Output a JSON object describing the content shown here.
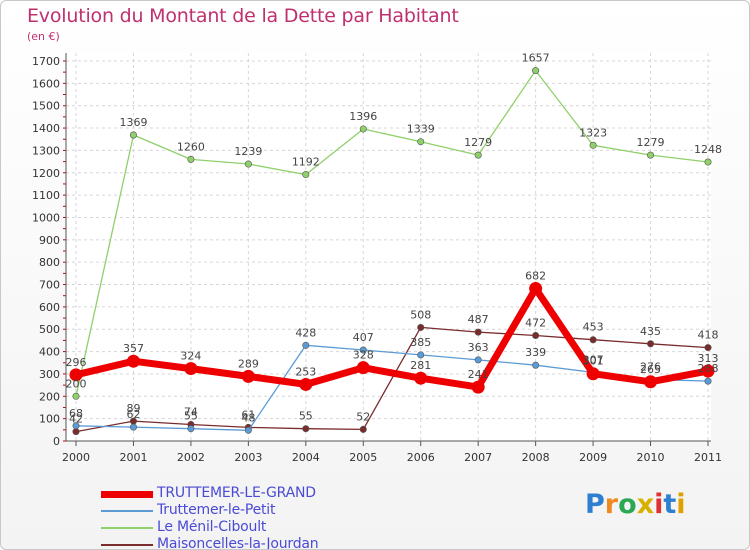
{
  "title": "Evolution du Montant de la Dette par Habitant",
  "unit_label": "(en €)",
  "brand": {
    "text": "Proxiti",
    "letter_colors": [
      "#2f7fd0",
      "#f08a1e",
      "#2aa852",
      "#d8b000",
      "#e03030",
      "#2f7fd0",
      "#e0a000"
    ]
  },
  "chart_data": {
    "type": "line",
    "title": "Evolution du Montant de la Dette par Habitant",
    "xlabel": "",
    "ylabel": "(en €)",
    "ylim": [
      0,
      1700
    ],
    "y_ticks": [
      0,
      100,
      200,
      300,
      400,
      500,
      600,
      700,
      800,
      900,
      1000,
      1100,
      1200,
      1300,
      1400,
      1500,
      1600,
      1700
    ],
    "categories": [
      "2000",
      "2001",
      "2002",
      "2003",
      "2004",
      "2005",
      "2006",
      "2007",
      "2008",
      "2009",
      "2010",
      "2011"
    ],
    "grid": true,
    "legend_position": "bottom-left",
    "series": [
      {
        "name": "TRUTTEMER-LE-GRAND",
        "color": "#ee0000",
        "values": [
          296,
          357,
          324,
          289,
          253,
          328,
          281,
          241,
          682,
          301,
          265,
          313
        ],
        "labels": [
          "296",
          "357",
          "324",
          "289",
          "253",
          "328",
          "281",
          "241",
          "682",
          "301",
          "265",
          "313"
        ]
      },
      {
        "name": "Truttemer-le-Petit",
        "color": "#5b9bd5",
        "values": [
          68,
          62,
          55,
          48,
          428,
          407,
          385,
          363,
          339,
          307,
          276,
          268
        ],
        "labels": [
          "68",
          "62",
          "55",
          "48",
          "428",
          "407",
          "385",
          "363",
          "339",
          "307",
          "276",
          "268"
        ]
      },
      {
        "name": "Le Ménil-Ciboult",
        "color": "#8fd06a",
        "values": [
          200,
          1369,
          1260,
          1239,
          1192,
          1396,
          1339,
          1279,
          1657,
          1323,
          1279,
          1248
        ],
        "labels": [
          "200",
          "1369",
          "1260",
          "1239",
          "1192",
          "1396",
          "1339",
          "1279",
          "1657",
          "1323",
          "1279",
          "1248"
        ]
      },
      {
        "name": "Maisoncelles-la-Jourdan",
        "color": "#7a2b2b",
        "values": [
          42,
          89,
          74,
          61,
          55,
          52,
          508,
          487,
          472,
          453,
          435,
          418
        ],
        "labels": [
          "42",
          "89",
          "74",
          "61",
          "55",
          "52",
          "508",
          "487",
          "472",
          "453",
          "435",
          "418"
        ]
      }
    ]
  }
}
